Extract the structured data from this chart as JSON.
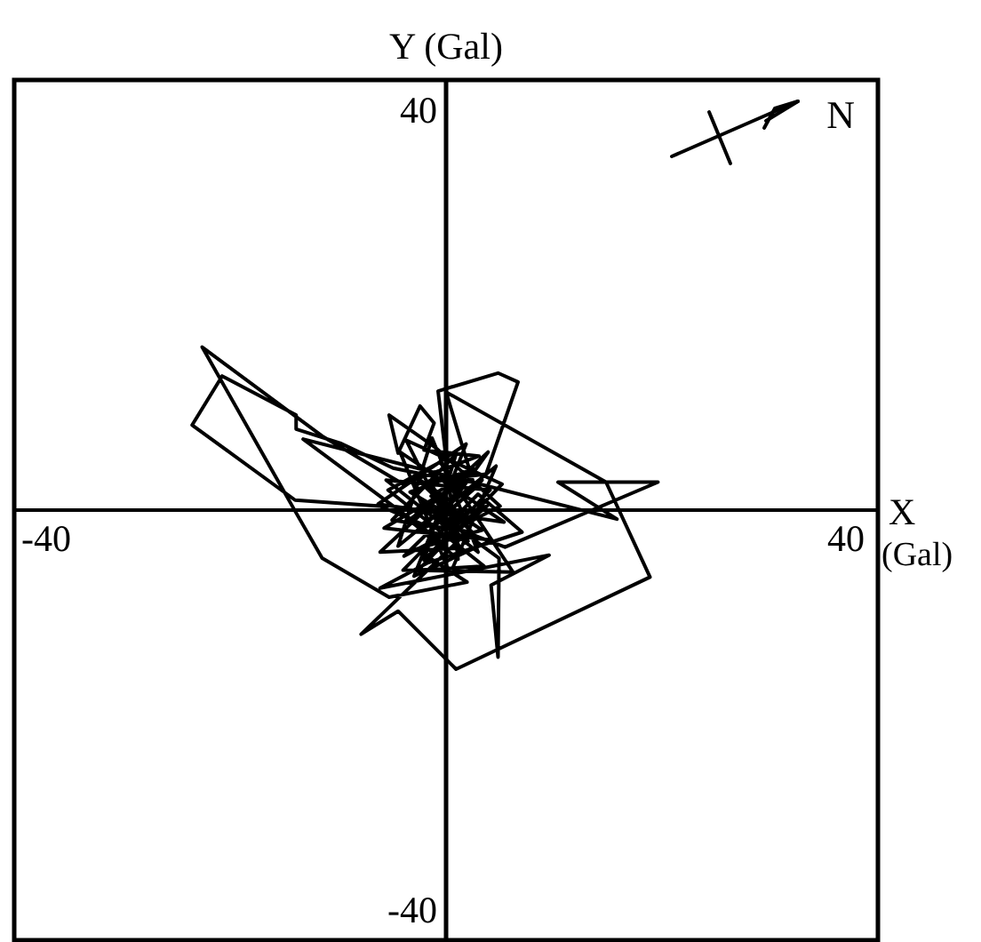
{
  "chart_data": {
    "type": "line",
    "xlabel": "X (Gal)",
    "ylabel": "Y (Gal)",
    "color": "#000000",
    "x": [
      0.5,
      -3.2,
      2.6,
      -5.4,
      1.0,
      -2.2,
      4.4,
      -6.0,
      3.2,
      -1.4,
      -4.8,
      5.0,
      0.4,
      -4.6,
      5.8,
      -6.8,
      2.0,
      -3.2,
      4.6,
      -6.2,
      1.6,
      -5.3,
      -10.6,
      -15.0,
      -15.0,
      -22.4,
      -25.4,
      -15.1,
      -6.6,
      -2.4,
      3.6,
      -4.2,
      5.4,
      -1.0,
      -5.7,
      -4.8,
      -2.6,
      -1.2,
      -2.2,
      3.3,
      -4.3,
      -12.4,
      -24.4,
      -15.1,
      -12.4,
      -5.7,
      2.1,
      -3.0,
      3.6,
      -1.5,
      2.8,
      -3.7,
      1.2,
      -0.8,
      5.2,
      7.2,
      4.0,
      -1.7,
      2.2,
      -2.7,
      4.1,
      -0.3,
      -14.3,
      17.1,
      11.2,
      21.2,
      5.9,
      -0.9,
      2.9,
      0.0,
      16.0,
      20.4,
      1.0,
      -4.8,
      -8.5,
      1.6,
      -2.5,
      5.3,
      5.2,
      4.5,
      10.3,
      -6.6,
      -1.9,
      7.6,
      3.2,
      -4.3,
      6.7,
      -0.6,
      -5.8,
      3.8,
      -2.8,
      5.6,
      -4.0,
      1.4,
      -6.6,
      4.2,
      -1.8,
      2.4,
      -3.6,
      2.2,
      -2.0,
      1.4,
      -1.2,
      0.6,
      -0.4,
      0.3
    ],
    "values": [
      0.9,
      3.4,
      -2.2,
      -1.0,
      5.6,
      -5.0,
      2.0,
      3.0,
      -4.2,
      7.2,
      -3.6,
      4.4,
      -6.4,
      5.8,
      -1.2,
      0.6,
      6.6,
      -6.6,
      -3.0,
      -1.8,
      2.8,
      4.2,
      6.7,
      8.1,
      9.5,
      13.4,
      8.5,
      1.0,
      0.4,
      -1.4,
      3.0,
      -4.6,
      0.4,
      6.2,
      9.5,
      5.7,
      10.4,
      8.7,
      6.0,
      5.4,
      2.6,
      7.4,
      16.3,
      -0.1,
      -4.8,
      -8.7,
      -7.2,
      -3.9,
      -2.0,
      1.4,
      4.1,
      -1.0,
      -4.9,
      11.9,
      13.7,
      12.8,
      3.6,
      2.9,
      -3.1,
      -1.9,
      0.4,
      -3.3,
      7.1,
      -0.9,
      2.8,
      2.8,
      -3.7,
      -1.1,
      2.2,
      11.8,
      2.8,
      -6.7,
      -15.9,
      -10.1,
      -12.4,
      -2.7,
      0.9,
      -4.8,
      -14.7,
      -7.5,
      -4.5,
      -7.8,
      -5.3,
      -2.2,
      1.6,
      -6.0,
      -6.2,
      4.8,
      2.0,
      -5.6,
      -6.0,
      2.6,
      7.0,
      -3.8,
      -4.2,
      5.8,
      -2.6,
      4.0,
      1.8,
      -1.6,
      2.6,
      -0.8,
      1.4,
      -0.4,
      0.5,
      0.1
    ],
    "xlim": [
      -43.2,
      43.2
    ],
    "ylim": [
      -43,
      43
    ],
    "xticks": [
      -40,
      40
    ],
    "yticks": [
      -40,
      40
    ],
    "annotations": [
      "N"
    ]
  }
}
